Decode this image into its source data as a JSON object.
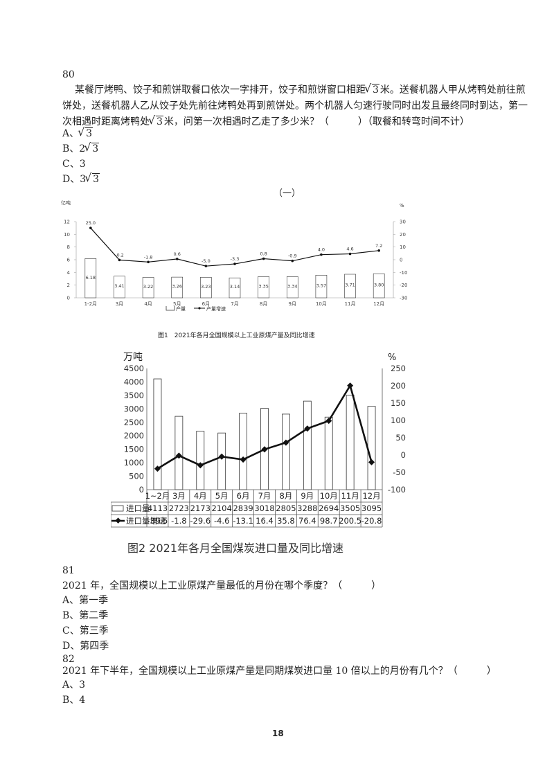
{
  "q80": {
    "number": "80",
    "line1_pre": "某餐厅烤鸭、饺子和煎饼取餐口依次一字排开，饺子和煎饼窗口相距",
    "line1_root": "3",
    "line1_post": "米。送餐机器人甲从烤鸭处前往煎",
    "line2": "饼处，送餐机器人乙从饺子处先前往烤鸭处再到煎饼处。两个机器人匀速行驶同时出发且最终同时到达，第一",
    "line3_pre": "次相遇时距离烤鸭处",
    "line3_root": "3",
    "line3_post": "米，问第一次相遇时乙走了多少米？（　　　）（取餐和转弯时间不计）",
    "options": [
      {
        "prefix": "A、",
        "coef": "",
        "root": "3",
        "plain": ""
      },
      {
        "prefix": "B、",
        "coef": "2",
        "root": "3",
        "plain": ""
      },
      {
        "prefix": "C、",
        "coef": "",
        "root": "",
        "plain": "3"
      },
      {
        "prefix": "D、",
        "coef": "3",
        "root": "3",
        "plain": ""
      }
    ]
  },
  "section_title": "（一）",
  "chart1_caption": "图1　2021年各月全国规模以上工业原煤产量及同比增速",
  "chart2_caption": "图2  2021年各月全国煤炭进口量及同比增速",
  "q81": {
    "number": "81",
    "text": "2021 年，全国规模以上工业原煤产量最低的月份在哪个季度？（　　　）",
    "options": [
      "A、第一季",
      "B、第二季",
      "C、第三季",
      "D、第四季"
    ]
  },
  "q82": {
    "number": "82",
    "text": "2021 年下半年，全国规模以上工业原煤产量是同期煤炭进口量 10 倍以上的月份有几个？（　　　）",
    "options": [
      "A、3",
      "B、4"
    ]
  },
  "page_number": "18",
  "chart_data": [
    {
      "type": "bar",
      "left_unit": "亿吨",
      "right_unit": "%",
      "categories": [
        "1-2月",
        "3月",
        "4月",
        "5月",
        "6月",
        "7月",
        "8月",
        "9月",
        "10月",
        "11月",
        "12月"
      ],
      "series": [
        {
          "name": "产量",
          "type": "bar",
          "axis": "left",
          "values": [
            6.18,
            3.41,
            3.22,
            3.26,
            3.23,
            3.14,
            3.35,
            3.34,
            3.57,
            3.71,
            3.8
          ],
          "labels": [
            "6.18",
            "3.41",
            "3.22",
            "3.26",
            "3.23",
            "3.14",
            "3.35",
            "3.34",
            "3.57",
            "3.71",
            "3.80"
          ]
        },
        {
          "name": "产量增速",
          "type": "line",
          "axis": "right",
          "values": [
            25.0,
            -0.2,
            -1.8,
            0.6,
            -5.0,
            -3.3,
            0.8,
            -0.9,
            4.0,
            4.6,
            7.2
          ],
          "labels": [
            "25.0",
            "-0.2",
            "-1.8",
            "0.6",
            "-5.0",
            "-3.3",
            "0.8",
            "-0.9",
            "4.0",
            "4.6",
            "7.2"
          ]
        }
      ],
      "left_ticks": [
        "0",
        "2",
        "4",
        "6",
        "8",
        "10",
        "12"
      ],
      "right_ticks": [
        "30",
        "20",
        "10",
        "0",
        "-10",
        "-20",
        "-30"
      ],
      "ylim": [
        0,
        12
      ],
      "y2lim": [
        -30,
        30
      ],
      "colors": {
        "bar": "#ffffff",
        "line": "#111111"
      }
    },
    {
      "type": "bar",
      "left_unit": "万吨",
      "right_unit": "%",
      "categories": [
        "1~2月",
        "3月",
        "4月",
        "5月",
        "6月",
        "7月",
        "8月",
        "9月",
        "10月",
        "11月",
        "12月"
      ],
      "series": [
        {
          "name": "进口量",
          "type": "bar",
          "axis": "left",
          "values": [
            4113,
            2723,
            2173,
            2104,
            2839,
            3018,
            2805,
            3288,
            2694,
            3505,
            3095
          ]
        },
        {
          "name": "进口量增速",
          "type": "line",
          "axis": "right",
          "values": [
            -39.5,
            -1.8,
            -29.6,
            -4.6,
            -13.1,
            16.4,
            35.8,
            76.4,
            98.7,
            200.5,
            -20.8
          ]
        }
      ],
      "table_values": [
        [
          "4113",
          "2723",
          "2173",
          "2104",
          "2839",
          "3018",
          "2805",
          "3288",
          "2694",
          "3505",
          "3095"
        ],
        [
          "-39.5",
          "-1.8",
          "-29.6",
          "-4.6",
          "-13.1",
          "16.4",
          "35.8",
          "76.4",
          "98.7",
          "200.5",
          "-20.8"
        ]
      ],
      "left_ticks": [
        "0",
        "500",
        "1000",
        "1500",
        "2000",
        "2500",
        "3000",
        "3500",
        "4000",
        "4500"
      ],
      "right_ticks": [
        "-100",
        "-50",
        "0",
        "50",
        "100",
        "150",
        "200",
        "250"
      ],
      "ylim": [
        0,
        4500
      ],
      "y2lim": [
        -100,
        250
      ],
      "colors": {
        "bar": "#ffffff",
        "line": "#111111"
      }
    }
  ]
}
